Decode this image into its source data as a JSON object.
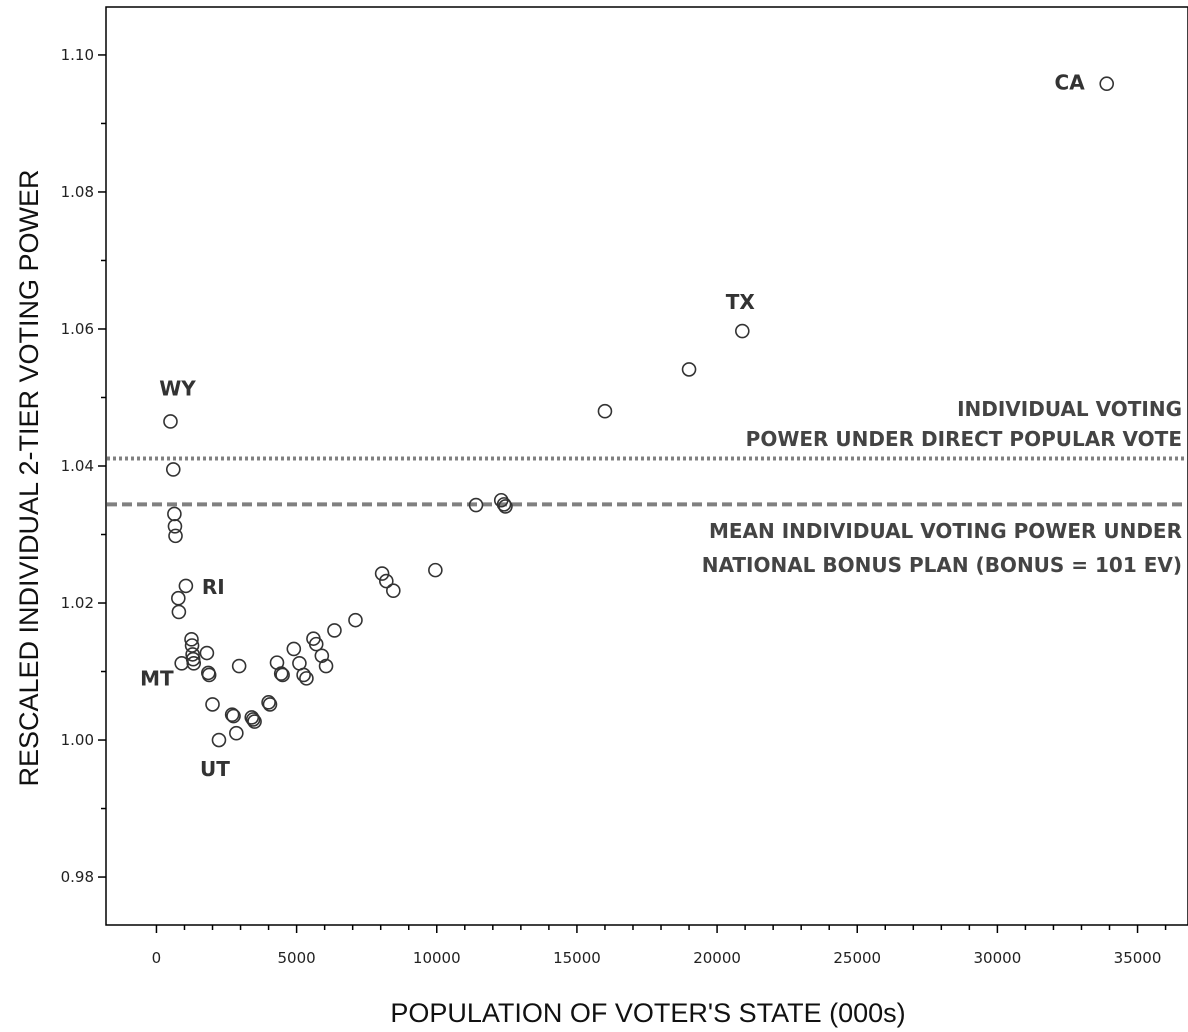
{
  "chart_data": {
    "type": "scatter",
    "title": "",
    "xlabel": "POPULATION OF VOTER'S STATE (000s)",
    "ylabel": "RESCALED INDIVIDUAL 2-TIER VOTING POWER",
    "xlim": [
      -1800,
      36800
    ],
    "ylim": [
      0.973,
      1.107
    ],
    "x_ticks": [
      0,
      5000,
      10000,
      15000,
      20000,
      25000,
      30000,
      35000
    ],
    "x_tick_labels": [
      "0",
      "5000",
      "10000",
      "15000",
      "20000",
      "25000",
      "30000",
      "35000"
    ],
    "y_ticks": [
      0.98,
      1.0,
      1.02,
      1.04,
      1.06,
      1.08,
      1.1
    ],
    "y_tick_labels": [
      "0.98",
      "1.00",
      "1.02",
      "1.04",
      "1.06",
      "1.08",
      "1.10"
    ],
    "points": [
      {
        "x": 500,
        "y": 1.0465,
        "label": "WY"
      },
      {
        "x": 600,
        "y": 1.0395
      },
      {
        "x": 640,
        "y": 1.033
      },
      {
        "x": 660,
        "y": 1.0312
      },
      {
        "x": 680,
        "y": 1.0298
      },
      {
        "x": 780,
        "y": 1.0207
      },
      {
        "x": 800,
        "y": 1.0187
      },
      {
        "x": 1050,
        "y": 1.0225,
        "label": "RI"
      },
      {
        "x": 900,
        "y": 1.0112,
        "label": "MT"
      },
      {
        "x": 1250,
        "y": 1.0147
      },
      {
        "x": 1270,
        "y": 1.0138
      },
      {
        "x": 1290,
        "y": 1.0125
      },
      {
        "x": 1310,
        "y": 1.0118
      },
      {
        "x": 1330,
        "y": 1.0112
      },
      {
        "x": 1800,
        "y": 1.0127
      },
      {
        "x": 1850,
        "y": 1.0098
      },
      {
        "x": 1880,
        "y": 1.0095
      },
      {
        "x": 2000,
        "y": 1.0052
      },
      {
        "x": 2230,
        "y": 1.0,
        "label": "UT"
      },
      {
        "x": 2700,
        "y": 1.0037
      },
      {
        "x": 2750,
        "y": 1.0035
      },
      {
        "x": 2850,
        "y": 1.001
      },
      {
        "x": 2950,
        "y": 1.0108
      },
      {
        "x": 3400,
        "y": 1.0033
      },
      {
        "x": 3450,
        "y": 1.003
      },
      {
        "x": 3500,
        "y": 1.0027
      },
      {
        "x": 4000,
        "y": 1.0055
      },
      {
        "x": 4050,
        "y": 1.0052
      },
      {
        "x": 4300,
        "y": 1.0113
      },
      {
        "x": 4450,
        "y": 1.0097
      },
      {
        "x": 4500,
        "y": 1.0095
      },
      {
        "x": 4900,
        "y": 1.0133
      },
      {
        "x": 5100,
        "y": 1.0112
      },
      {
        "x": 5250,
        "y": 1.0095
      },
      {
        "x": 5350,
        "y": 1.009
      },
      {
        "x": 5600,
        "y": 1.0148
      },
      {
        "x": 5700,
        "y": 1.014
      },
      {
        "x": 5900,
        "y": 1.0123
      },
      {
        "x": 6050,
        "y": 1.0108
      },
      {
        "x": 6350,
        "y": 1.016
      },
      {
        "x": 7100,
        "y": 1.0175
      },
      {
        "x": 8050,
        "y": 1.0243
      },
      {
        "x": 8200,
        "y": 1.0232
      },
      {
        "x": 8450,
        "y": 1.0218
      },
      {
        "x": 9950,
        "y": 1.0248
      },
      {
        "x": 11400,
        "y": 1.0343
      },
      {
        "x": 12300,
        "y": 1.035
      },
      {
        "x": 12400,
        "y": 1.0344
      },
      {
        "x": 12450,
        "y": 1.0341
      },
      {
        "x": 16000,
        "y": 1.048
      },
      {
        "x": 19000,
        "y": 1.0541
      },
      {
        "x": 20900,
        "y": 1.0597,
        "label": "TX"
      },
      {
        "x": 33900,
        "y": 1.0958,
        "label": "CA"
      }
    ],
    "reference_lines": [
      {
        "y": 1.0411,
        "style": "dotted",
        "label_lines": [
          "INDIVIDUAL VOTING",
          "POWER UNDER DIRECT POPULAR VOTE"
        ]
      },
      {
        "y": 1.0344,
        "style": "dashed",
        "label_lines": [
          "MEAN INDIVIDUAL VOTING POWER UNDER",
          "NATIONAL BONUS PLAN  (BONUS = 101 EV)"
        ]
      }
    ],
    "grid": false,
    "legend": "none",
    "marker_color": "#333333",
    "line_color": "#808080"
  }
}
